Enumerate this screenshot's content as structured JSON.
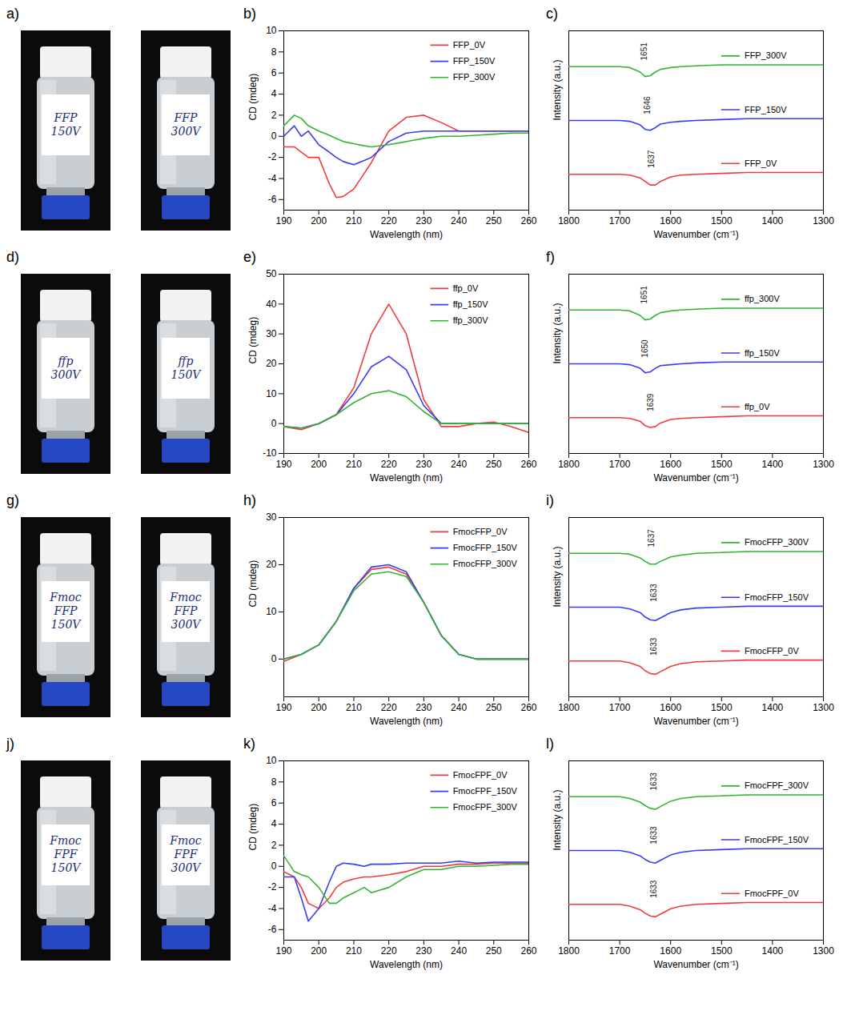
{
  "photos": [
    {
      "panel": "a)",
      "vials": [
        "FFP 150V",
        "FFP 300V"
      ]
    },
    {
      "panel": "d)",
      "vials": [
        "ffp 300V",
        "ffp 150V"
      ]
    },
    {
      "panel": "g)",
      "vials": [
        "Fmoc FFP 150V",
        "Fmoc FFP 300V"
      ]
    },
    {
      "panel": "j)",
      "vials": [
        "Fmoc FPF 150V",
        "Fmoc FPF 300V"
      ]
    }
  ],
  "chart_data": [
    {
      "panel": "b)",
      "type": "line",
      "x_label": "Wavelength (nm)",
      "y_label": "CD (mdeg)",
      "legend": "top-right",
      "x": [
        190,
        193,
        195,
        197,
        200,
        203,
        205,
        207,
        210,
        213,
        215,
        220,
        225,
        230,
        235,
        240,
        245,
        250,
        255,
        260
      ],
      "xlim": [
        190,
        260
      ],
      "xticks": [
        190,
        200,
        210,
        220,
        230,
        240,
        250,
        260
      ],
      "ylim": [
        -7,
        10
      ],
      "yticks": [
        -6,
        -4,
        -2,
        0,
        2,
        4,
        6,
        8,
        10
      ],
      "series": [
        {
          "name": "FFP_0V",
          "color": "#f03c3c",
          "values": [
            -1,
            -1,
            -1.5,
            -2,
            -2,
            -4.5,
            -5.8,
            -5.7,
            -5,
            -3.5,
            -2.5,
            0.5,
            1.8,
            2,
            1.3,
            0.5,
            0.5,
            0.5,
            0.5,
            0.5
          ]
        },
        {
          "name": "FFP_150V",
          "color": "#3b3bf5",
          "values": [
            0,
            1,
            0,
            0.5,
            -0.8,
            -1.5,
            -2,
            -2.4,
            -2.7,
            -2.3,
            -2,
            -0.5,
            0.3,
            0.5,
            0.5,
            0.5,
            0.5,
            0.5,
            0.5,
            0.5
          ]
        },
        {
          "name": "FFP_300V",
          "color": "#33b533",
          "values": [
            1,
            2,
            1.7,
            1,
            0.5,
            0.1,
            -0.2,
            -0.5,
            -0.7,
            -0.9,
            -1,
            -0.8,
            -0.5,
            -0.2,
            0,
            0,
            0.1,
            0.2,
            0.3,
            0.3
          ]
        }
      ]
    },
    {
      "panel": "c)",
      "type": "line",
      "x_label": "Wavenumber (cm⁻¹)",
      "y_label": "Intensity (a.u.)",
      "legend": "right",
      "tick_labels": "x",
      "x": [
        1800,
        1750,
        1700,
        1680,
        1660,
        1650,
        1640,
        1630,
        1620,
        1600,
        1580,
        1550,
        1500,
        1450,
        1400,
        1350,
        1300
      ],
      "xlim": [
        1800,
        1300
      ],
      "xticks": [
        1800,
        1700,
        1600,
        1500,
        1400,
        1300
      ],
      "ylim": [
        0,
        10
      ],
      "series": [
        {
          "name": "FFP_0V",
          "color": "#f03c3c",
          "peak": 1637,
          "values": [
            2,
            2,
            2,
            1.95,
            1.8,
            1.6,
            1.4,
            1.4,
            1.6,
            1.85,
            1.95,
            2,
            2.05,
            2.1,
            2.1,
            2.1,
            2.1
          ]
        },
        {
          "name": "FFP_150V",
          "color": "#3b3bf5",
          "peak": 1646,
          "values": [
            5,
            5,
            5,
            4.95,
            4.75,
            4.5,
            4.45,
            4.6,
            4.8,
            4.9,
            4.95,
            5,
            5.05,
            5.1,
            5.1,
            5.1,
            5.1
          ]
        },
        {
          "name": "FFP_300V",
          "color": "#33b533",
          "peak": 1651,
          "values": [
            8,
            8,
            8,
            7.95,
            7.7,
            7.45,
            7.5,
            7.7,
            7.85,
            7.95,
            8,
            8.05,
            8.1,
            8.1,
            8.1,
            8.1,
            8.1
          ]
        }
      ]
    },
    {
      "panel": "e)",
      "type": "line",
      "x_label": "Wavelength (nm)",
      "y_label": "CD (mdeg)",
      "legend": "top-right",
      "x": [
        190,
        195,
        200,
        205,
        210,
        215,
        220,
        225,
        230,
        235,
        240,
        245,
        250,
        255,
        260
      ],
      "xlim": [
        190,
        260
      ],
      "xticks": [
        190,
        200,
        210,
        220,
        230,
        240,
        250,
        260
      ],
      "ylim": [
        -10,
        50
      ],
      "yticks": [
        -10,
        0,
        10,
        20,
        30,
        40,
        50
      ],
      "series": [
        {
          "name": "ffp_0V",
          "color": "#f03c3c",
          "values": [
            -1,
            -2,
            0,
            3,
            12,
            30,
            40,
            30,
            8,
            -1,
            -1,
            0,
            0.5,
            -1,
            -3
          ]
        },
        {
          "name": "ffp_150V",
          "color": "#3b3bf5",
          "values": [
            -1,
            -1.5,
            0,
            3,
            10,
            19,
            22.5,
            18,
            6,
            0,
            0,
            0,
            0,
            0,
            0
          ]
        },
        {
          "name": "ffp_300V",
          "color": "#33b533",
          "values": [
            -1,
            -1.5,
            0,
            3,
            7,
            10,
            11,
            9,
            4,
            0,
            0,
            0,
            0,
            0,
            0
          ]
        }
      ]
    },
    {
      "panel": "f)",
      "type": "line",
      "x_label": "Wavenumber (cm⁻¹)",
      "y_label": "Intensity (a.u.)",
      "legend": "right",
      "tick_labels": "x",
      "x": [
        1800,
        1750,
        1700,
        1680,
        1660,
        1650,
        1640,
        1630,
        1620,
        1600,
        1580,
        1550,
        1500,
        1450,
        1400,
        1350,
        1300
      ],
      "xlim": [
        1800,
        1300
      ],
      "xticks": [
        1800,
        1700,
        1600,
        1500,
        1400,
        1300
      ],
      "ylim": [
        0,
        10
      ],
      "series": [
        {
          "name": "ffp_0V",
          "color": "#f03c3c",
          "peak": 1639,
          "values": [
            2,
            2,
            2,
            1.95,
            1.8,
            1.55,
            1.45,
            1.5,
            1.7,
            1.9,
            1.95,
            2,
            2.05,
            2.1,
            2.1,
            2.1,
            2.1
          ]
        },
        {
          "name": "ffp_150V",
          "color": "#3b3bf5",
          "peak": 1650,
          "values": [
            5,
            5,
            5,
            4.95,
            4.75,
            4.5,
            4.55,
            4.75,
            4.9,
            4.95,
            5,
            5.05,
            5.1,
            5.1,
            5.1,
            5.1,
            5.1
          ]
        },
        {
          "name": "ffp_300V",
          "color": "#33b533",
          "peak": 1651,
          "values": [
            8,
            8,
            8,
            7.95,
            7.7,
            7.45,
            7.5,
            7.7,
            7.85,
            7.95,
            8,
            8.05,
            8.1,
            8.1,
            8.1,
            8.1,
            8.1
          ]
        }
      ]
    },
    {
      "panel": "h)",
      "type": "line",
      "x_label": "Wavelength (nm)",
      "y_label": "CD (mdeg)",
      "legend": "top-right",
      "x": [
        190,
        195,
        200,
        205,
        210,
        215,
        220,
        225,
        230,
        235,
        240,
        245,
        250,
        255,
        260
      ],
      "xlim": [
        190,
        260
      ],
      "xticks": [
        190,
        200,
        210,
        220,
        230,
        240,
        250,
        260
      ],
      "ylim": [
        -8,
        30
      ],
      "yticks": [
        0,
        10,
        20,
        30
      ],
      "series": [
        {
          "name": "FmocFFP_0V",
          "color": "#f03c3c",
          "values": [
            -0.5,
            1,
            3,
            8,
            15,
            19,
            19.5,
            18,
            12,
            5,
            1,
            0,
            0,
            0,
            0
          ]
        },
        {
          "name": "FmocFFP_150V",
          "color": "#3b3bf5",
          "values": [
            0,
            1,
            3,
            8,
            15,
            19.5,
            20,
            18.5,
            12,
            5,
            1,
            0,
            0,
            0,
            0
          ]
        },
        {
          "name": "FmocFFP_300V",
          "color": "#33b533",
          "values": [
            0,
            1,
            3,
            8,
            14.5,
            18,
            18.5,
            17.5,
            12,
            5,
            1,
            0,
            0,
            0,
            0
          ]
        }
      ]
    },
    {
      "panel": "i)",
      "type": "line",
      "x_label": "Wavenumber (cm⁻¹)",
      "y_label": "Intensity (a.u.)",
      "legend": "right",
      "tick_labels": "x",
      "x": [
        1800,
        1750,
        1700,
        1680,
        1660,
        1650,
        1640,
        1630,
        1620,
        1600,
        1580,
        1550,
        1500,
        1450,
        1400,
        1350,
        1300
      ],
      "xlim": [
        1800,
        1300
      ],
      "xticks": [
        1800,
        1700,
        1600,
        1500,
        1400,
        1300
      ],
      "ylim": [
        0,
        10
      ],
      "series": [
        {
          "name": "FmocFFP_0V",
          "color": "#f03c3c",
          "peak": 1633,
          "values": [
            2,
            2,
            2,
            1.9,
            1.7,
            1.45,
            1.3,
            1.25,
            1.4,
            1.7,
            1.85,
            1.95,
            2,
            2.05,
            2.05,
            2.05,
            2.05
          ]
        },
        {
          "name": "FmocFFP_150V",
          "color": "#3b3bf5",
          "peak": 1633,
          "values": [
            5,
            5,
            5,
            4.9,
            4.7,
            4.45,
            4.3,
            4.25,
            4.4,
            4.7,
            4.85,
            4.95,
            5,
            5.05,
            5.05,
            5.05,
            5.05
          ]
        },
        {
          "name": "FmocFFP_300V",
          "color": "#33b533",
          "peak": 1637,
          "values": [
            8,
            8,
            8,
            7.95,
            7.75,
            7.55,
            7.4,
            7.4,
            7.55,
            7.8,
            7.9,
            8,
            8.05,
            8.1,
            8.1,
            8.1,
            8.1
          ]
        }
      ]
    },
    {
      "panel": "k)",
      "type": "line",
      "x_label": "Wavelength (nm)",
      "y_label": "CD (mdeg)",
      "legend": "top-right",
      "x": [
        190,
        193,
        195,
        197,
        200,
        203,
        205,
        207,
        210,
        213,
        215,
        220,
        225,
        230,
        235,
        240,
        245,
        250,
        255,
        260
      ],
      "xlim": [
        190,
        260
      ],
      "xticks": [
        190,
        200,
        210,
        220,
        230,
        240,
        250,
        260
      ],
      "ylim": [
        -7,
        10
      ],
      "yticks": [
        -6,
        -4,
        -2,
        0,
        2,
        4,
        6,
        8,
        10
      ],
      "series": [
        {
          "name": "FmocFPF_0V",
          "color": "#f03c3c",
          "values": [
            -0.5,
            -1,
            -2,
            -3.5,
            -4,
            -3,
            -2,
            -1.5,
            -1.2,
            -1,
            -1,
            -0.8,
            -0.5,
            0,
            0,
            0.2,
            0.2,
            0.3,
            0.3,
            0.3
          ]
        },
        {
          "name": "FmocFPF_150V",
          "color": "#3b3bf5",
          "values": [
            -1,
            -1,
            -3,
            -5.2,
            -4,
            -1.5,
            0,
            0.3,
            0.2,
            0,
            0.2,
            0.2,
            0.3,
            0.3,
            0.3,
            0.5,
            0.3,
            0.4,
            0.4,
            0.4
          ]
        },
        {
          "name": "FmocFPF_300V",
          "color": "#33b533",
          "values": [
            1,
            -0.5,
            -0.8,
            -1,
            -2,
            -3.5,
            -3.5,
            -3,
            -2.5,
            -2,
            -2.5,
            -2,
            -1,
            -0.3,
            -0.3,
            0,
            0,
            0.1,
            0.2,
            0.2
          ]
        }
      ]
    },
    {
      "panel": "l)",
      "type": "line",
      "x_label": "Wavenumber (cm⁻¹)",
      "y_label": "Intensity (a.u.)",
      "legend": "right",
      "tick_labels": "x",
      "x": [
        1800,
        1750,
        1700,
        1680,
        1660,
        1650,
        1640,
        1630,
        1620,
        1600,
        1580,
        1550,
        1500,
        1450,
        1400,
        1350,
        1300
      ],
      "xlim": [
        1800,
        1300
      ],
      "xticks": [
        1800,
        1700,
        1600,
        1500,
        1400,
        1300
      ],
      "ylim": [
        0,
        10
      ],
      "series": [
        {
          "name": "FmocFPF_0V",
          "color": "#f03c3c",
          "peak": 1633,
          "values": [
            2,
            2,
            2,
            1.9,
            1.7,
            1.5,
            1.35,
            1.3,
            1.45,
            1.75,
            1.9,
            2,
            2.05,
            2.1,
            2.1,
            2.1,
            2.1
          ]
        },
        {
          "name": "FmocFPF_150V",
          "color": "#3b3bf5",
          "peak": 1633,
          "values": [
            5,
            5,
            5,
            4.9,
            4.7,
            4.5,
            4.35,
            4.3,
            4.45,
            4.75,
            4.9,
            5,
            5.05,
            5.1,
            5.1,
            5.1,
            5.1
          ]
        },
        {
          "name": "FmocFPF_300V",
          "color": "#33b533",
          "peak": 1633,
          "values": [
            8,
            8,
            8,
            7.9,
            7.7,
            7.5,
            7.35,
            7.3,
            7.45,
            7.75,
            7.9,
            8,
            8.05,
            8.1,
            8.1,
            8.1,
            8.1
          ]
        }
      ]
    }
  ]
}
